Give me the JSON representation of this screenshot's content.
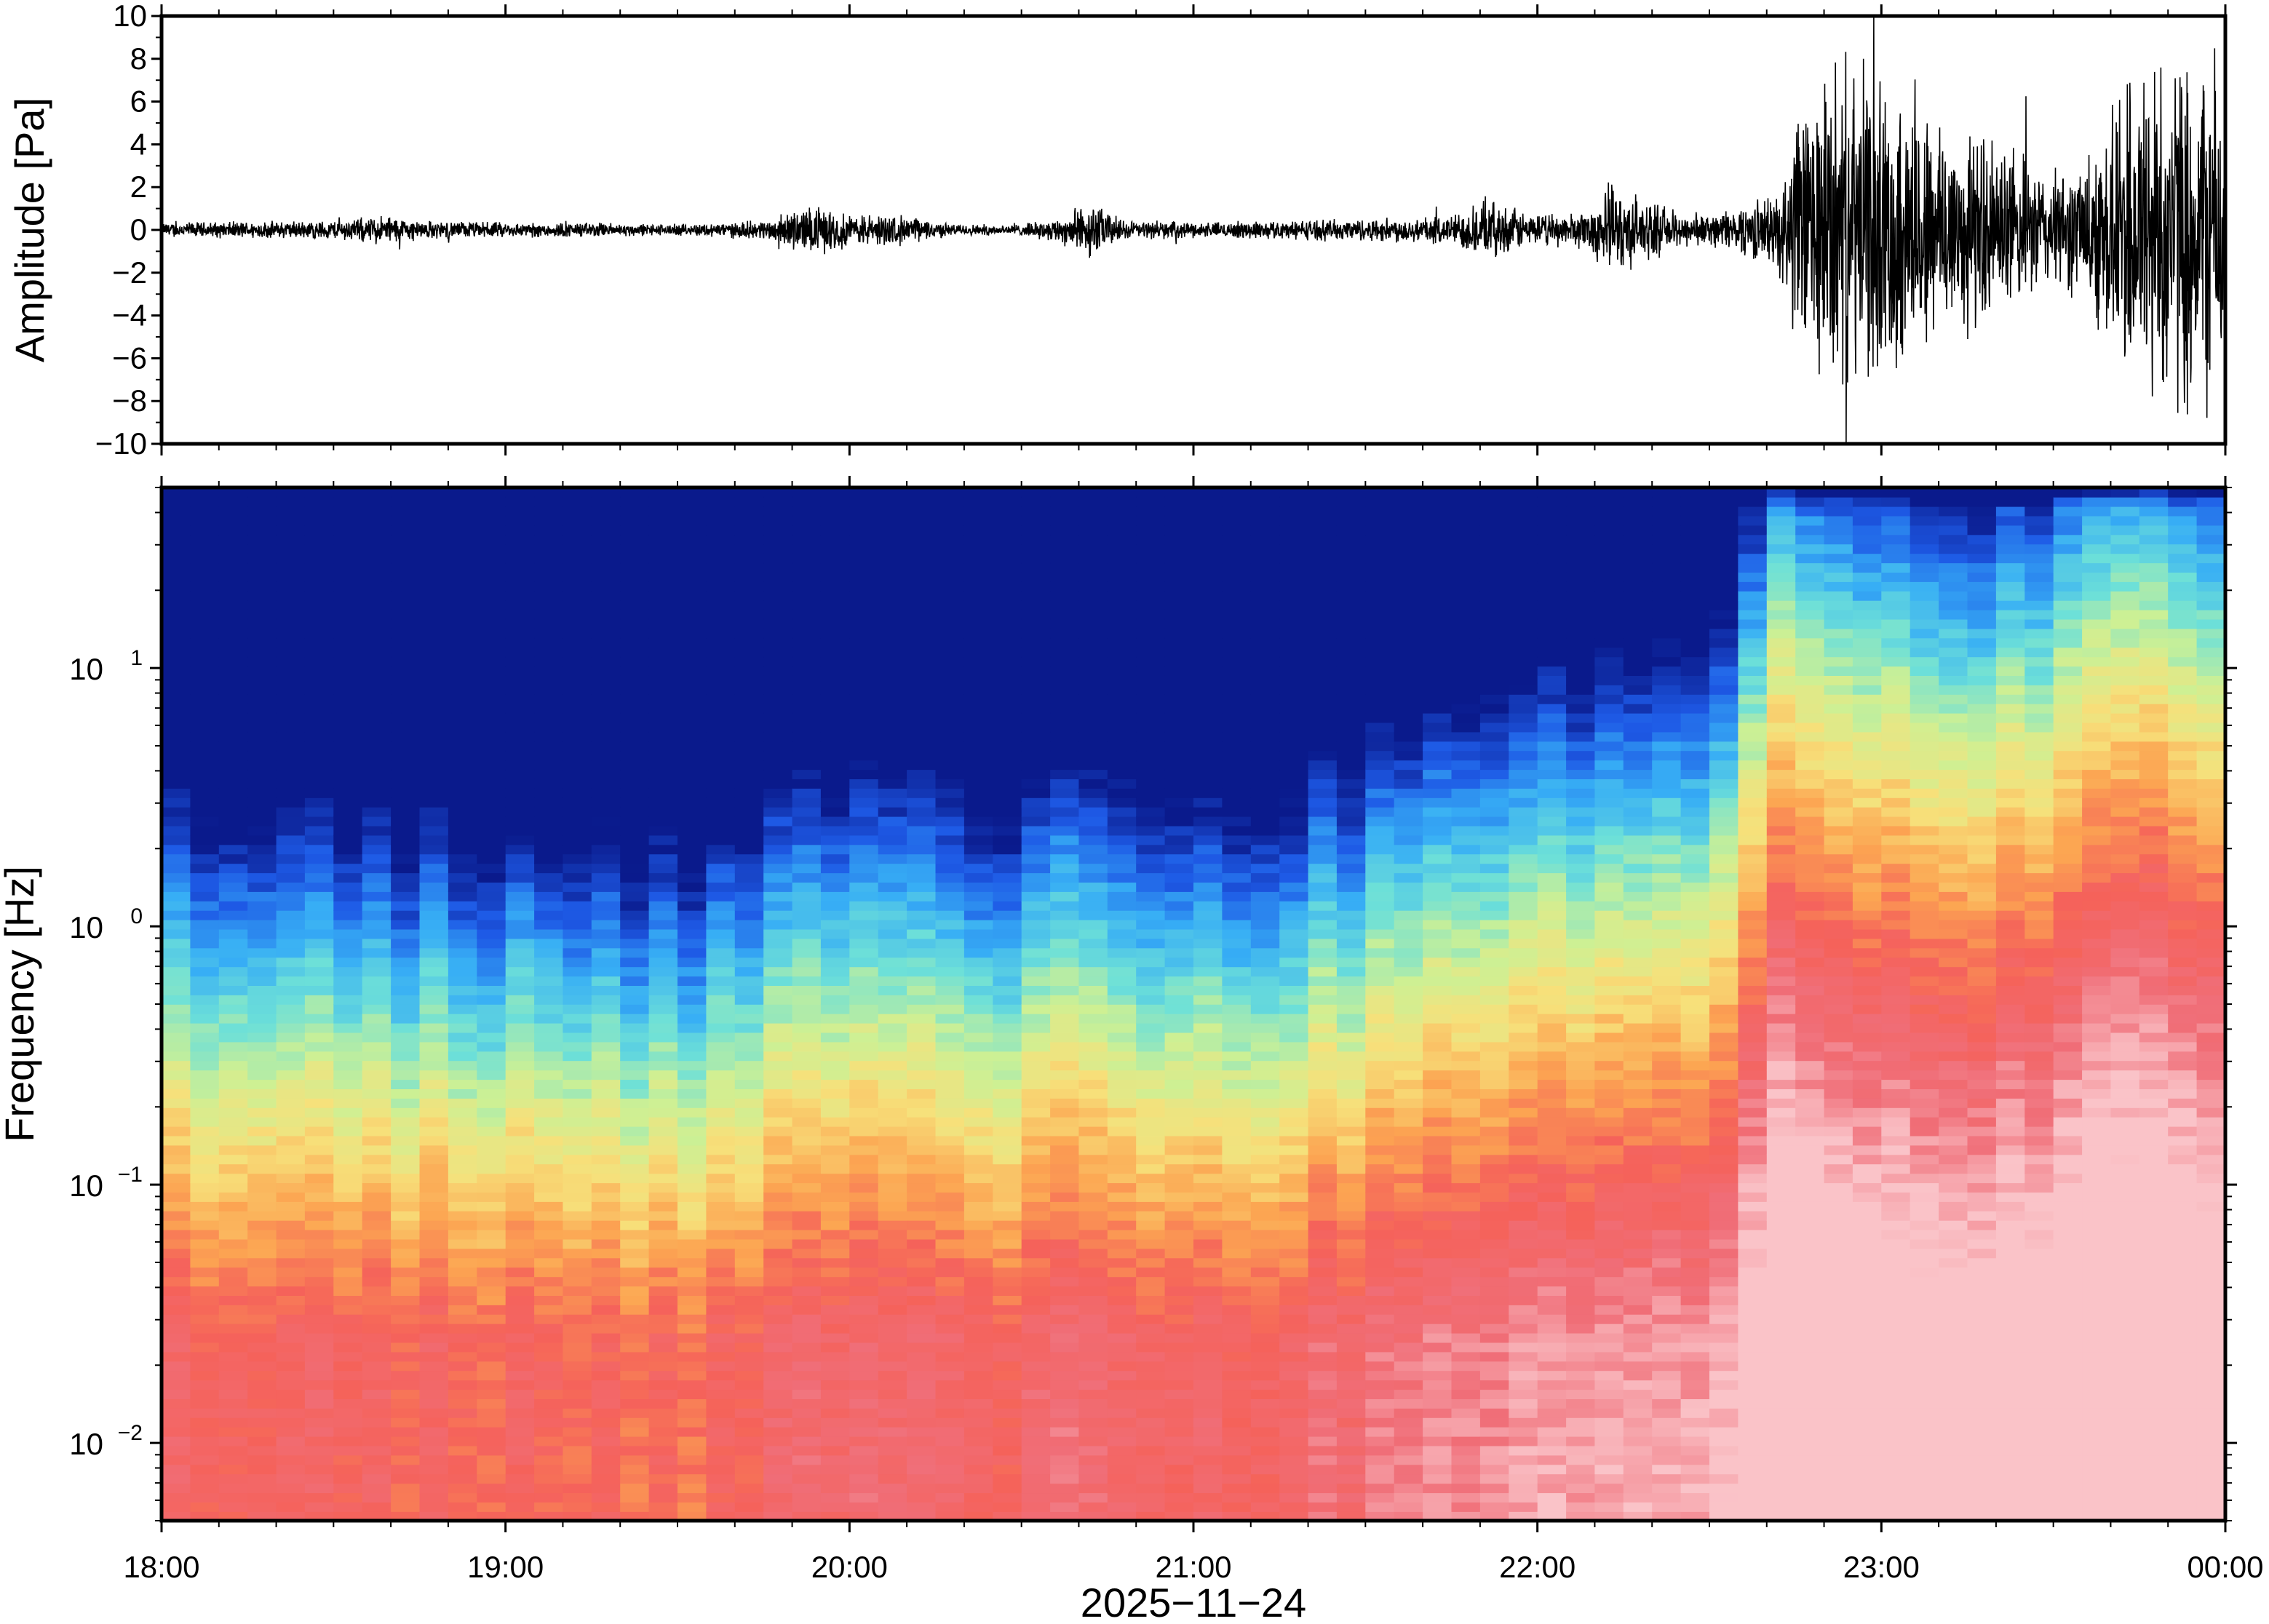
{
  "chart_data": [
    {
      "type": "line",
      "panel": "waveform",
      "ylabel": "Amplitude [Pa]",
      "ylim": [
        -10,
        10
      ],
      "yticks": [
        {
          "value": -10,
          "label": "−10"
        },
        {
          "value": -8,
          "label": "−8"
        },
        {
          "value": -6,
          "label": "−6"
        },
        {
          "value": -4,
          "label": "−4"
        },
        {
          "value": -2,
          "label": "−2"
        },
        {
          "value": 0,
          "label": "0"
        },
        {
          "value": 2,
          "label": "2"
        },
        {
          "value": 4,
          "label": "4"
        },
        {
          "value": 6,
          "label": "6"
        },
        {
          "value": 8,
          "label": "8"
        },
        {
          "value": 10,
          "label": "10"
        }
      ],
      "xlim": [
        "2025-11-24T18:00",
        "2025-11-25T00:00"
      ],
      "envelope": {
        "time_h": [
          18.0,
          18.25,
          18.5,
          18.65,
          18.75,
          19.0,
          19.25,
          19.5,
          19.75,
          19.85,
          19.9,
          20.0,
          20.15,
          20.3,
          20.5,
          20.6,
          20.7,
          20.8,
          21.0,
          21.25,
          21.5,
          21.75,
          21.85,
          22.0,
          22.15,
          22.2,
          22.4,
          22.5,
          22.6,
          22.7,
          22.75,
          22.85,
          23.0,
          23.2,
          23.4,
          23.5,
          23.6,
          23.75,
          24.0
        ],
        "amplitude_pa": [
          0.4,
          0.45,
          0.5,
          0.8,
          0.5,
          0.4,
          0.4,
          0.3,
          0.5,
          1.1,
          1.3,
          0.9,
          0.8,
          0.3,
          0.3,
          0.6,
          1.5,
          0.5,
          0.4,
          0.5,
          0.6,
          0.8,
          1.6,
          0.8,
          1.0,
          2.5,
          1.0,
          0.8,
          1.4,
          2.0,
          6.0,
          9.0,
          8.0,
          6.0,
          4.0,
          3.0,
          4.0,
          9.5,
          9.5
        ]
      }
    },
    {
      "type": "heatmap",
      "panel": "spectrogram",
      "ylabel": "Frequency [Hz]",
      "xlabel": "2025−11−24",
      "yscale": "log",
      "ylim_hz": [
        0.005,
        50
      ],
      "yticks": [
        {
          "value": 0.01,
          "base": "10",
          "exp": "−2"
        },
        {
          "value": 0.1,
          "base": "10",
          "exp": "−1"
        },
        {
          "value": 1,
          "base": "10",
          "exp": "0"
        },
        {
          "value": 10,
          "base": "10",
          "exp": "1"
        }
      ],
      "xticks": [
        {
          "value_h": 18,
          "label": "18:00"
        },
        {
          "value_h": 19,
          "label": "19:00"
        },
        {
          "value_h": 20,
          "label": "20:00"
        },
        {
          "value_h": 21,
          "label": "21:00"
        },
        {
          "value_h": 22,
          "label": "22:00"
        },
        {
          "value_h": 23,
          "label": "23:00"
        },
        {
          "value_h": 24,
          "label": "00:00"
        }
      ],
      "colormap": [
        "#0a1a8c",
        "#1e5ae6",
        "#37aef5",
        "#6de0d8",
        "#cdf094",
        "#f7e07a",
        "#fca552",
        "#f5625a",
        "#f06e78",
        "#fac3c8"
      ],
      "background_level_by_hour": {
        "time_h": [
          18.0,
          19.0,
          19.5,
          19.8,
          20.0,
          20.5,
          20.7,
          21.0,
          21.2,
          21.5,
          22.0,
          22.5,
          22.7,
          23.0,
          23.3,
          23.5,
          24.0
        ],
        "level": [
          0.0,
          -0.05,
          -0.1,
          0.05,
          0.1,
          0.0,
          0.15,
          0.0,
          0.05,
          0.15,
          0.25,
          0.35,
          0.75,
          0.7,
          0.6,
          0.7,
          0.78
        ]
      }
    }
  ]
}
